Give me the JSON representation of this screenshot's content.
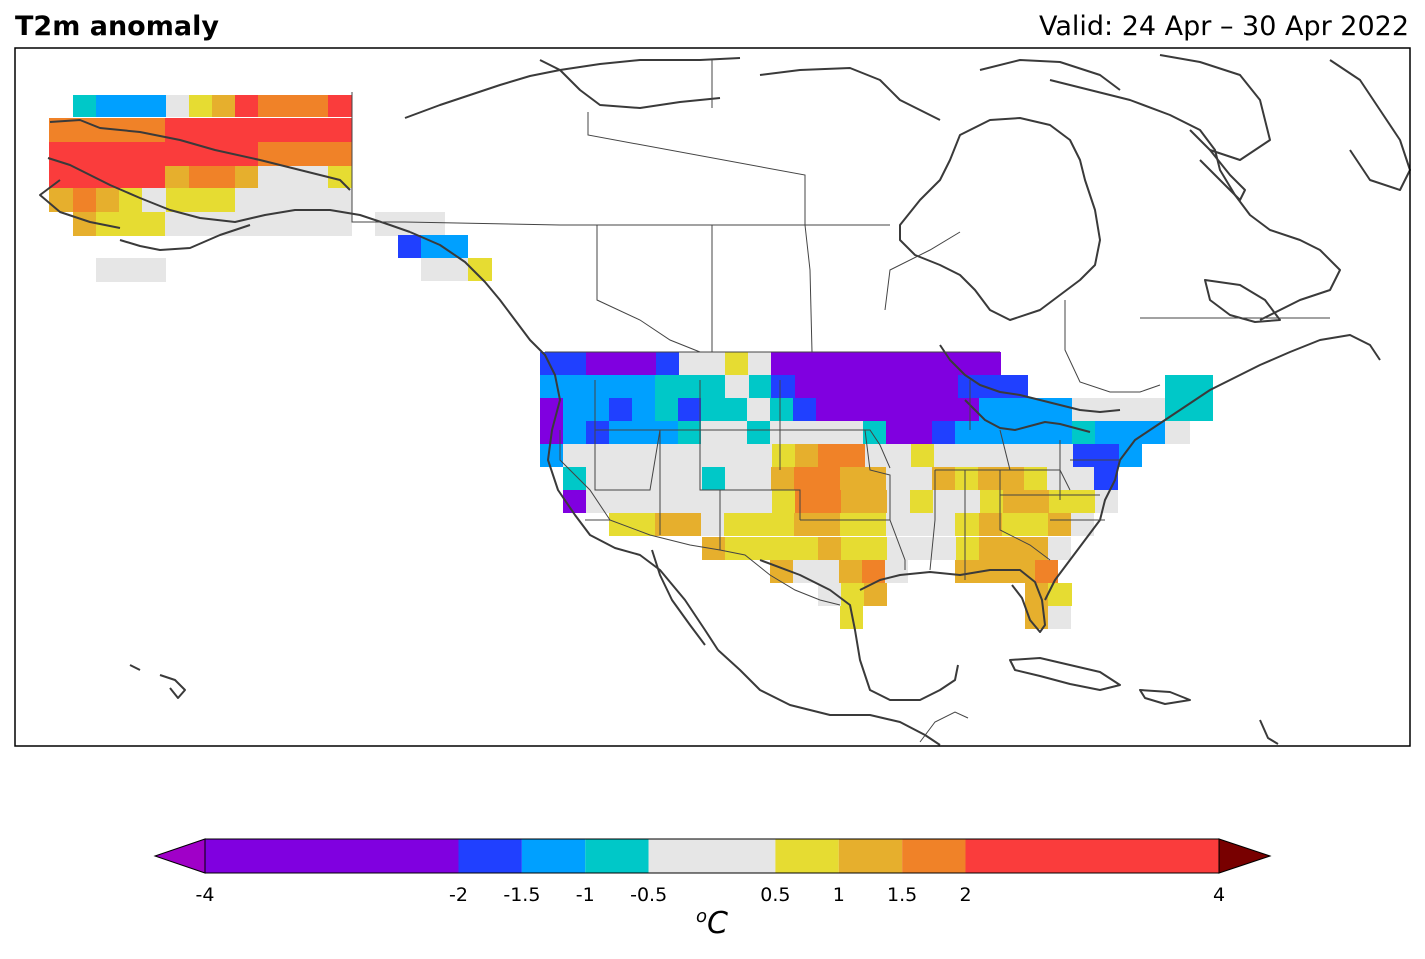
{
  "header": {
    "title": "T2m anomaly",
    "valid": "Valid: 24 Apr – 30 Apr 2022"
  },
  "colorbar": {
    "unit_prefix": "o",
    "unit_main": "C",
    "bounds": [
      -4,
      -2,
      -1.5,
      -1,
      -0.5,
      0.5,
      1,
      1.5,
      2,
      4
    ],
    "tick_labels": [
      "-4",
      "-2",
      "-1.5",
      "-1",
      "-0.5",
      "0.5",
      "1",
      "1.5",
      "2",
      "4"
    ],
    "colors": [
      "#8000e0",
      "#2040ff",
      "#00a0ff",
      "#00c8c8",
      "#e6e6e6",
      "#e6dc32",
      "#e6af2d",
      "#f08228",
      "#fa3c3c"
    ],
    "under_color": "#a000c8",
    "over_color": "#780000"
  }
}
